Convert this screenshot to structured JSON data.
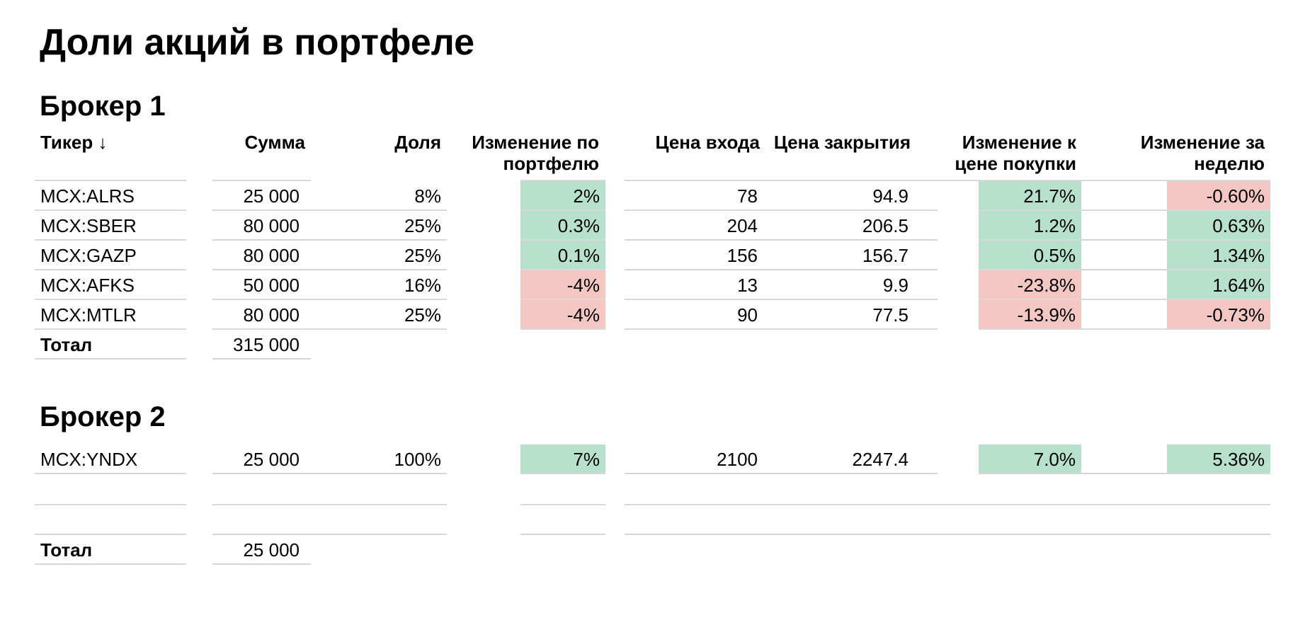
{
  "title": "Доли акций в портфеле",
  "colors": {
    "positive": "#b7e1cd",
    "negative": "#f4c7c3"
  },
  "headers": {
    "ticker": "Тикер ↓",
    "sum": "Сумма",
    "share": "Доля",
    "portfolio_change_line1": "Изменение по",
    "portfolio_change_line2": "портфелю",
    "entry_price": "Цена входа",
    "close_price": "Цена закрытия",
    "purchase_change_line1": "Изменение к",
    "purchase_change_line2": "цене покупки",
    "week_change_line1": "Изменение за",
    "week_change_line2": "неделю"
  },
  "broker1": {
    "title": "Брокер 1",
    "rows": [
      {
        "ticker": "MCX:ALRS",
        "sum": "25 000",
        "share": "8%",
        "portfolio_change": "2%",
        "portfolio_change_sign": "positive",
        "entry_price": "78",
        "close_price": "94.9",
        "purchase_change": "21.7%",
        "purchase_change_sign": "positive",
        "week_change": "-0.60%",
        "week_change_sign": "negative"
      },
      {
        "ticker": "MCX:SBER",
        "sum": "80 000",
        "share": "25%",
        "portfolio_change": "0.3%",
        "portfolio_change_sign": "positive",
        "entry_price": "204",
        "close_price": "206.5",
        "purchase_change": "1.2%",
        "purchase_change_sign": "positive",
        "week_change": "0.63%",
        "week_change_sign": "positive"
      },
      {
        "ticker": "MCX:GAZP",
        "sum": "80 000",
        "share": "25%",
        "portfolio_change": "0.1%",
        "portfolio_change_sign": "positive",
        "entry_price": "156",
        "close_price": "156.7",
        "purchase_change": "0.5%",
        "purchase_change_sign": "positive",
        "week_change": "1.34%",
        "week_change_sign": "positive"
      },
      {
        "ticker": "MCX:AFKS",
        "sum": "50 000",
        "share": "16%",
        "portfolio_change": "-4%",
        "portfolio_change_sign": "negative",
        "entry_price": "13",
        "close_price": "9.9",
        "purchase_change": "-23.8%",
        "purchase_change_sign": "negative",
        "week_change": "1.64%",
        "week_change_sign": "positive"
      },
      {
        "ticker": "MCX:MTLR",
        "sum": "80 000",
        "share": "25%",
        "portfolio_change": "-4%",
        "portfolio_change_sign": "negative",
        "entry_price": "90",
        "close_price": "77.5",
        "purchase_change": "-13.9%",
        "purchase_change_sign": "negative",
        "week_change": "-0.73%",
        "week_change_sign": "negative"
      }
    ],
    "total_label": "Тотал",
    "total_sum": "315 000"
  },
  "broker2": {
    "title": "Брокер 2",
    "rows": [
      {
        "ticker": "MCX:YNDX",
        "sum": "25 000",
        "share": "100%",
        "portfolio_change": "7%",
        "portfolio_change_sign": "positive",
        "entry_price": "2100",
        "close_price": "2247.4",
        "purchase_change": "7.0%",
        "purchase_change_sign": "positive",
        "week_change": "5.36%",
        "week_change_sign": "positive"
      }
    ],
    "total_label": "Тотал",
    "total_sum": "25 000"
  }
}
